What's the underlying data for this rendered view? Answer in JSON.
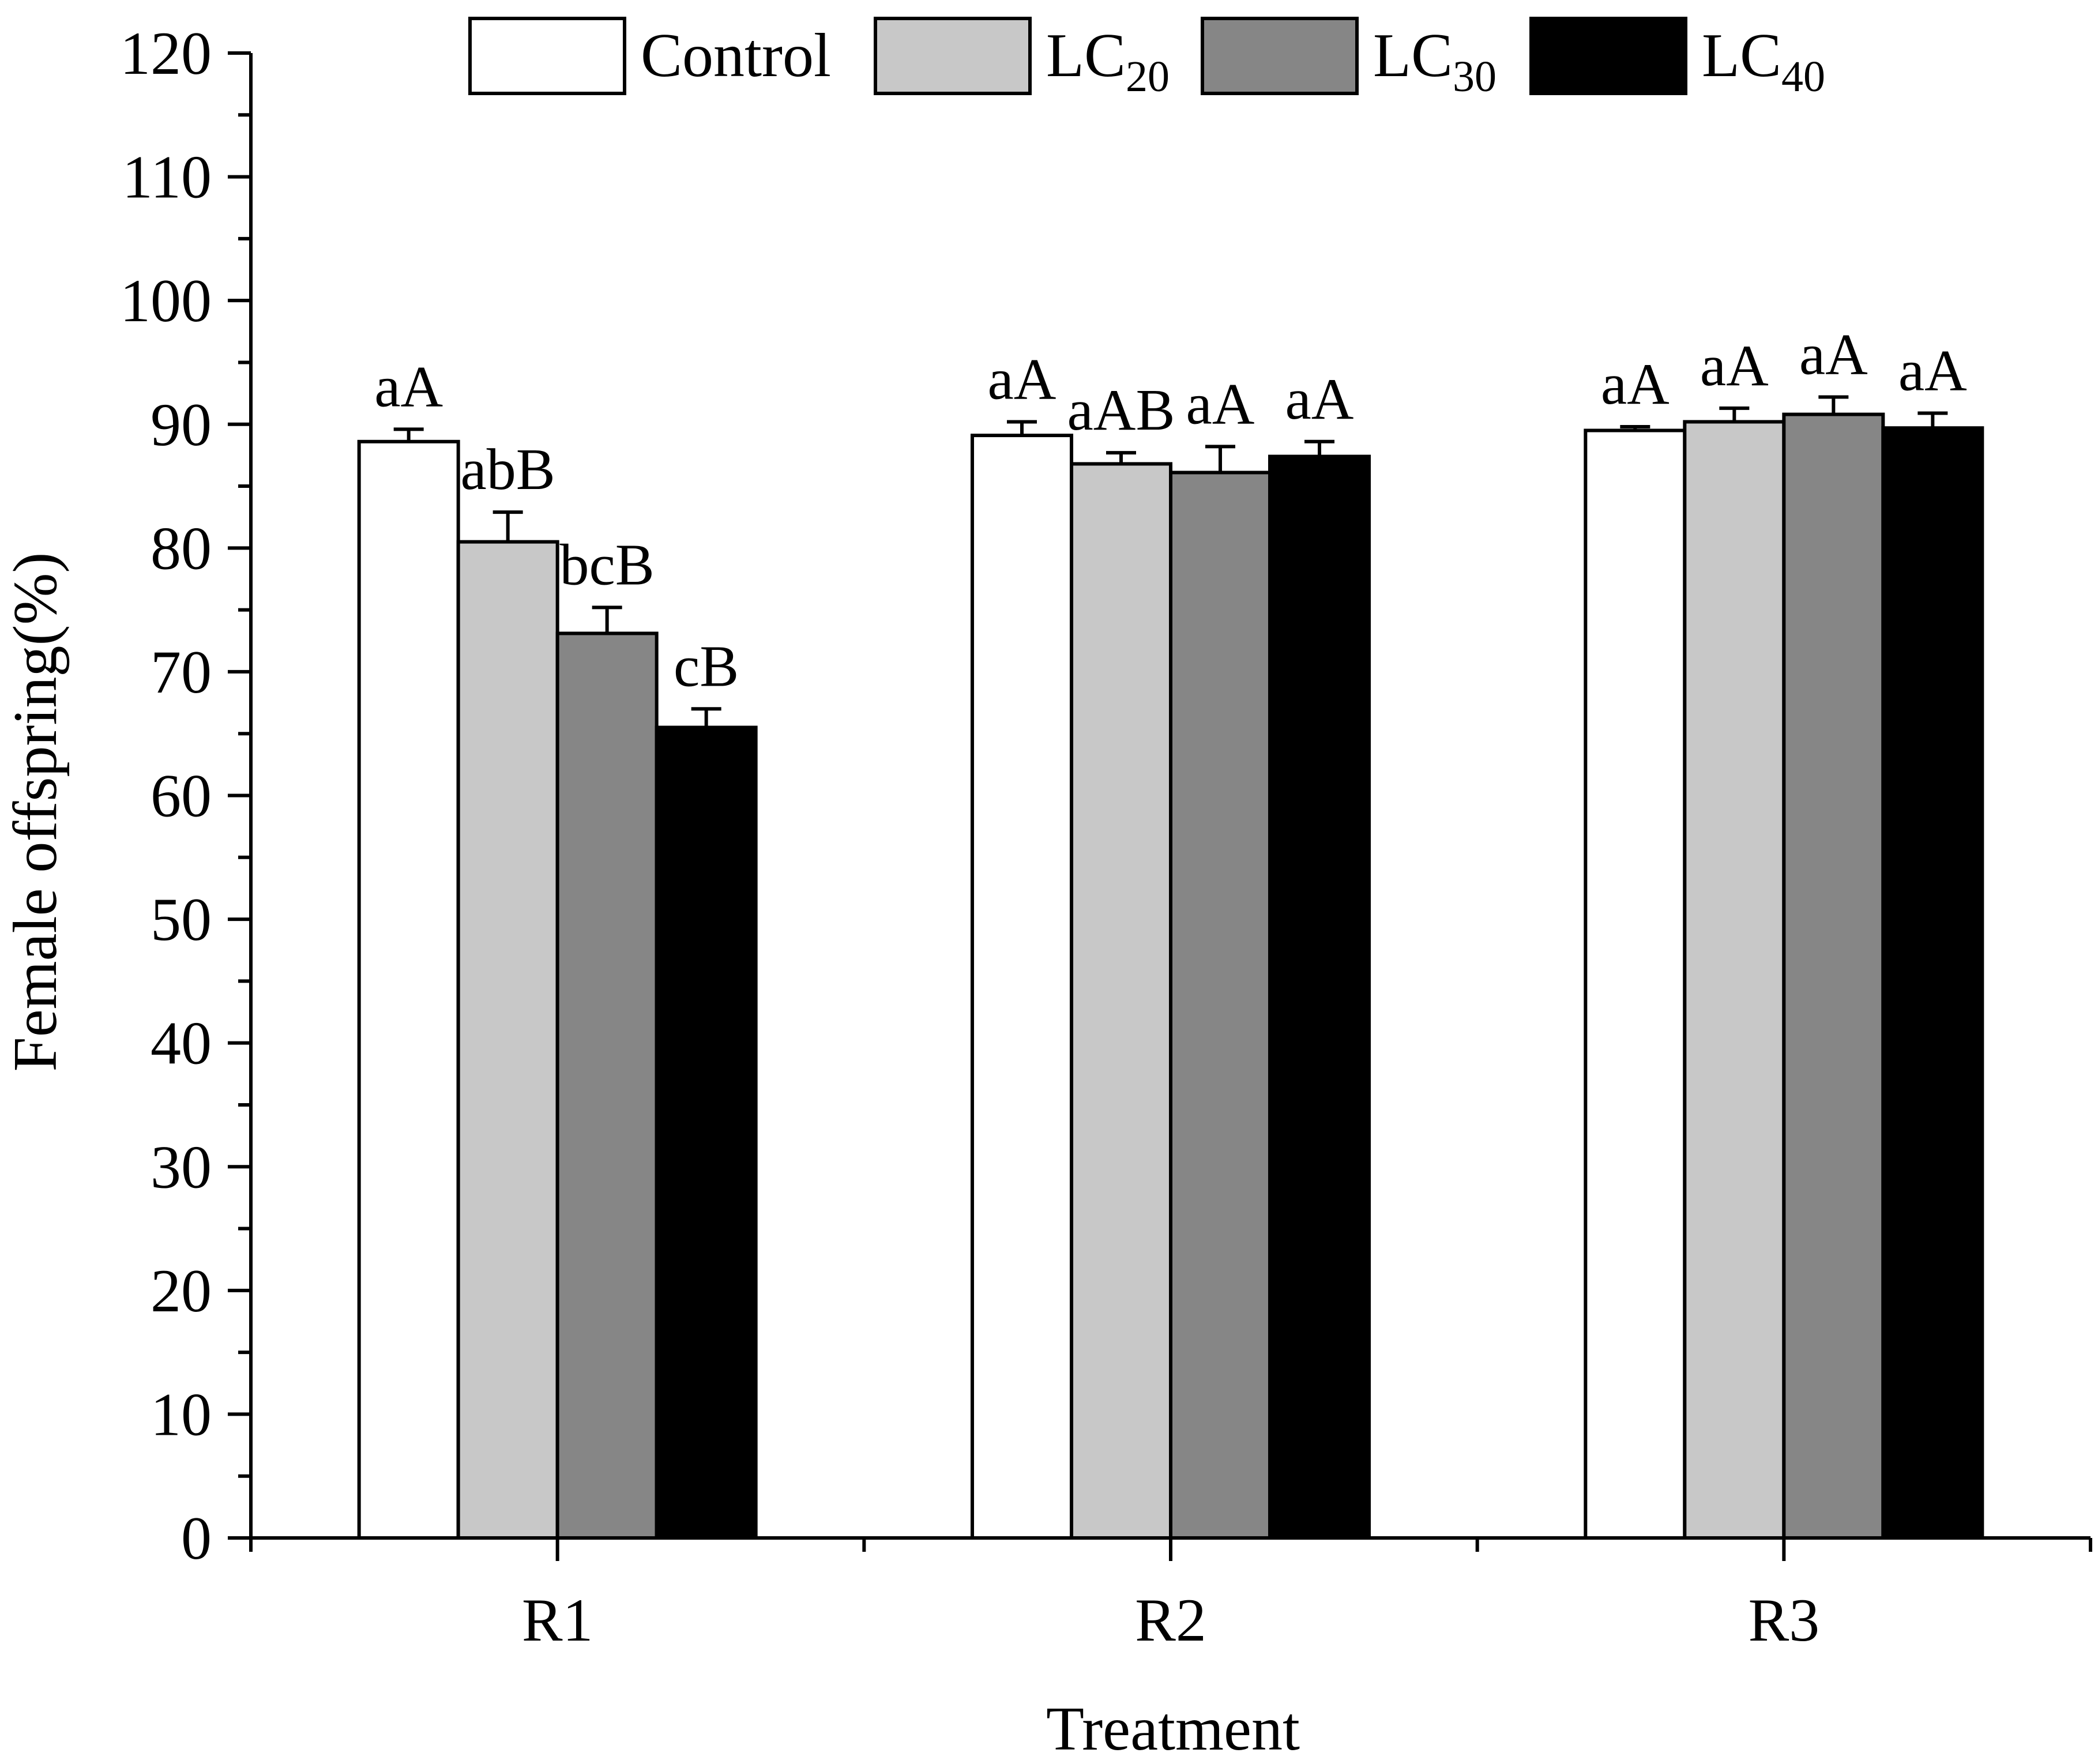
{
  "chart_data": {
    "type": "bar",
    "xlabel": "Treatment",
    "ylabel": "Female offspring(%)",
    "ylim": [
      0,
      120
    ],
    "ytick_step": 10,
    "yminor_step": 5,
    "categories": [
      "R1",
      "R2",
      "R3"
    ],
    "series": [
      {
        "name": "Control",
        "label_main": "Control",
        "label_sub": "",
        "color": "#ffffff",
        "values": [
          88.6,
          89.1,
          89.5
        ],
        "errors": [
          1.0,
          1.1,
          0.3
        ],
        "sig_labels": [
          "aA",
          "aA",
          "aA"
        ]
      },
      {
        "name": "LC20",
        "label_main": "LC",
        "label_sub": "20",
        "color": "#c8c8c8",
        "values": [
          80.5,
          86.8,
          90.2
        ],
        "errors": [
          2.4,
          0.9,
          1.1
        ],
        "sig_labels": [
          "abB",
          "aAB",
          "aA"
        ]
      },
      {
        "name": "LC30",
        "label_main": "LC",
        "label_sub": "30",
        "color": "#868686",
        "values": [
          73.1,
          86.1,
          90.8
        ],
        "errors": [
          2.1,
          2.1,
          1.4
        ],
        "sig_labels": [
          "bcB",
          "aA",
          "aA"
        ]
      },
      {
        "name": "LC40",
        "label_main": "LC",
        "label_sub": "40",
        "color": "#000000",
        "values": [
          65.5,
          87.4,
          89.7
        ],
        "errors": [
          1.5,
          1.2,
          1.2
        ],
        "sig_labels": [
          "cB",
          "aA",
          "aA"
        ]
      }
    ],
    "legend_position": "top"
  }
}
